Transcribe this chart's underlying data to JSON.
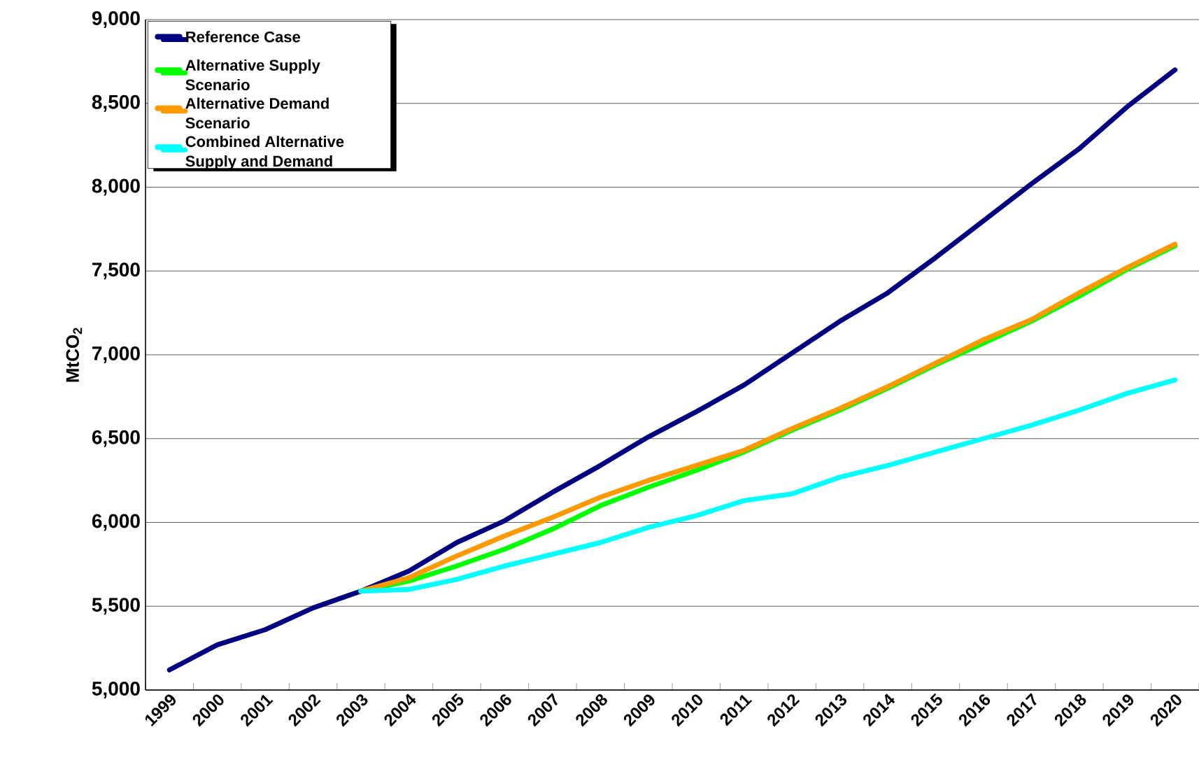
{
  "chart_data": {
    "type": "line",
    "ylabel": "MtCO$_{2}$",
    "categories": [
      "1999",
      "2000",
      "2001",
      "2002",
      "2003",
      "2004",
      "2005",
      "2006",
      "2007",
      "2008",
      "2009",
      "2010",
      "2011",
      "2012",
      "2013",
      "2014",
      "2015",
      "2016",
      "2017",
      "2018",
      "2019",
      "2020"
    ],
    "series": [
      {
        "name": "Reference Case",
        "color": "#000080",
        "values": [
          5120,
          5270,
          5360,
          5490,
          5590,
          5710,
          5880,
          6010,
          6180,
          6340,
          6510,
          6660,
          6820,
          7010,
          7200,
          7370,
          7580,
          7800,
          8020,
          8230,
          8480,
          8700
        ]
      },
      {
        "name": "Alternative Supply Scenario",
        "color": "#00ff00",
        "values": [
          null,
          null,
          null,
          null,
          5590,
          5650,
          5740,
          5840,
          5960,
          6100,
          6210,
          6310,
          6420,
          6550,
          6670,
          6800,
          6940,
          7070,
          7200,
          7350,
          7510,
          7650
        ]
      },
      {
        "name": "Alternative Demand Scenario",
        "color": "#ff9900",
        "values": [
          null,
          null,
          null,
          null,
          5590,
          5670,
          5800,
          5920,
          6030,
          6150,
          6250,
          6340,
          6430,
          6560,
          6680,
          6810,
          6950,
          7090,
          7210,
          7370,
          7520,
          7660
        ]
      },
      {
        "name": "Combined Alternative Supply and Demand",
        "color": "#00ffff",
        "values": [
          null,
          null,
          null,
          null,
          5590,
          5600,
          5660,
          5740,
          5810,
          5880,
          5970,
          6040,
          6130,
          6170,
          6270,
          6340,
          6420,
          6500,
          6580,
          6670,
          6770,
          6850
        ]
      }
    ],
    "ylim": [
      5000,
      9000
    ],
    "yticks": [
      {
        "value": 5000,
        "label": "5,000"
      },
      {
        "value": 5500,
        "label": "5,500"
      },
      {
        "value": 6000,
        "label": "6,000"
      },
      {
        "value": 6500,
        "label": "6,500"
      },
      {
        "value": 7000,
        "label": "7,000"
      },
      {
        "value": 7500,
        "label": "7,500"
      },
      {
        "value": 8000,
        "label": "8,000"
      },
      {
        "value": 8500,
        "label": "8,500"
      },
      {
        "value": 9000,
        "label": "9,000"
      }
    ],
    "grid": "y",
    "legend": "top left",
    "marker": "none",
    "line_style": "solid"
  }
}
